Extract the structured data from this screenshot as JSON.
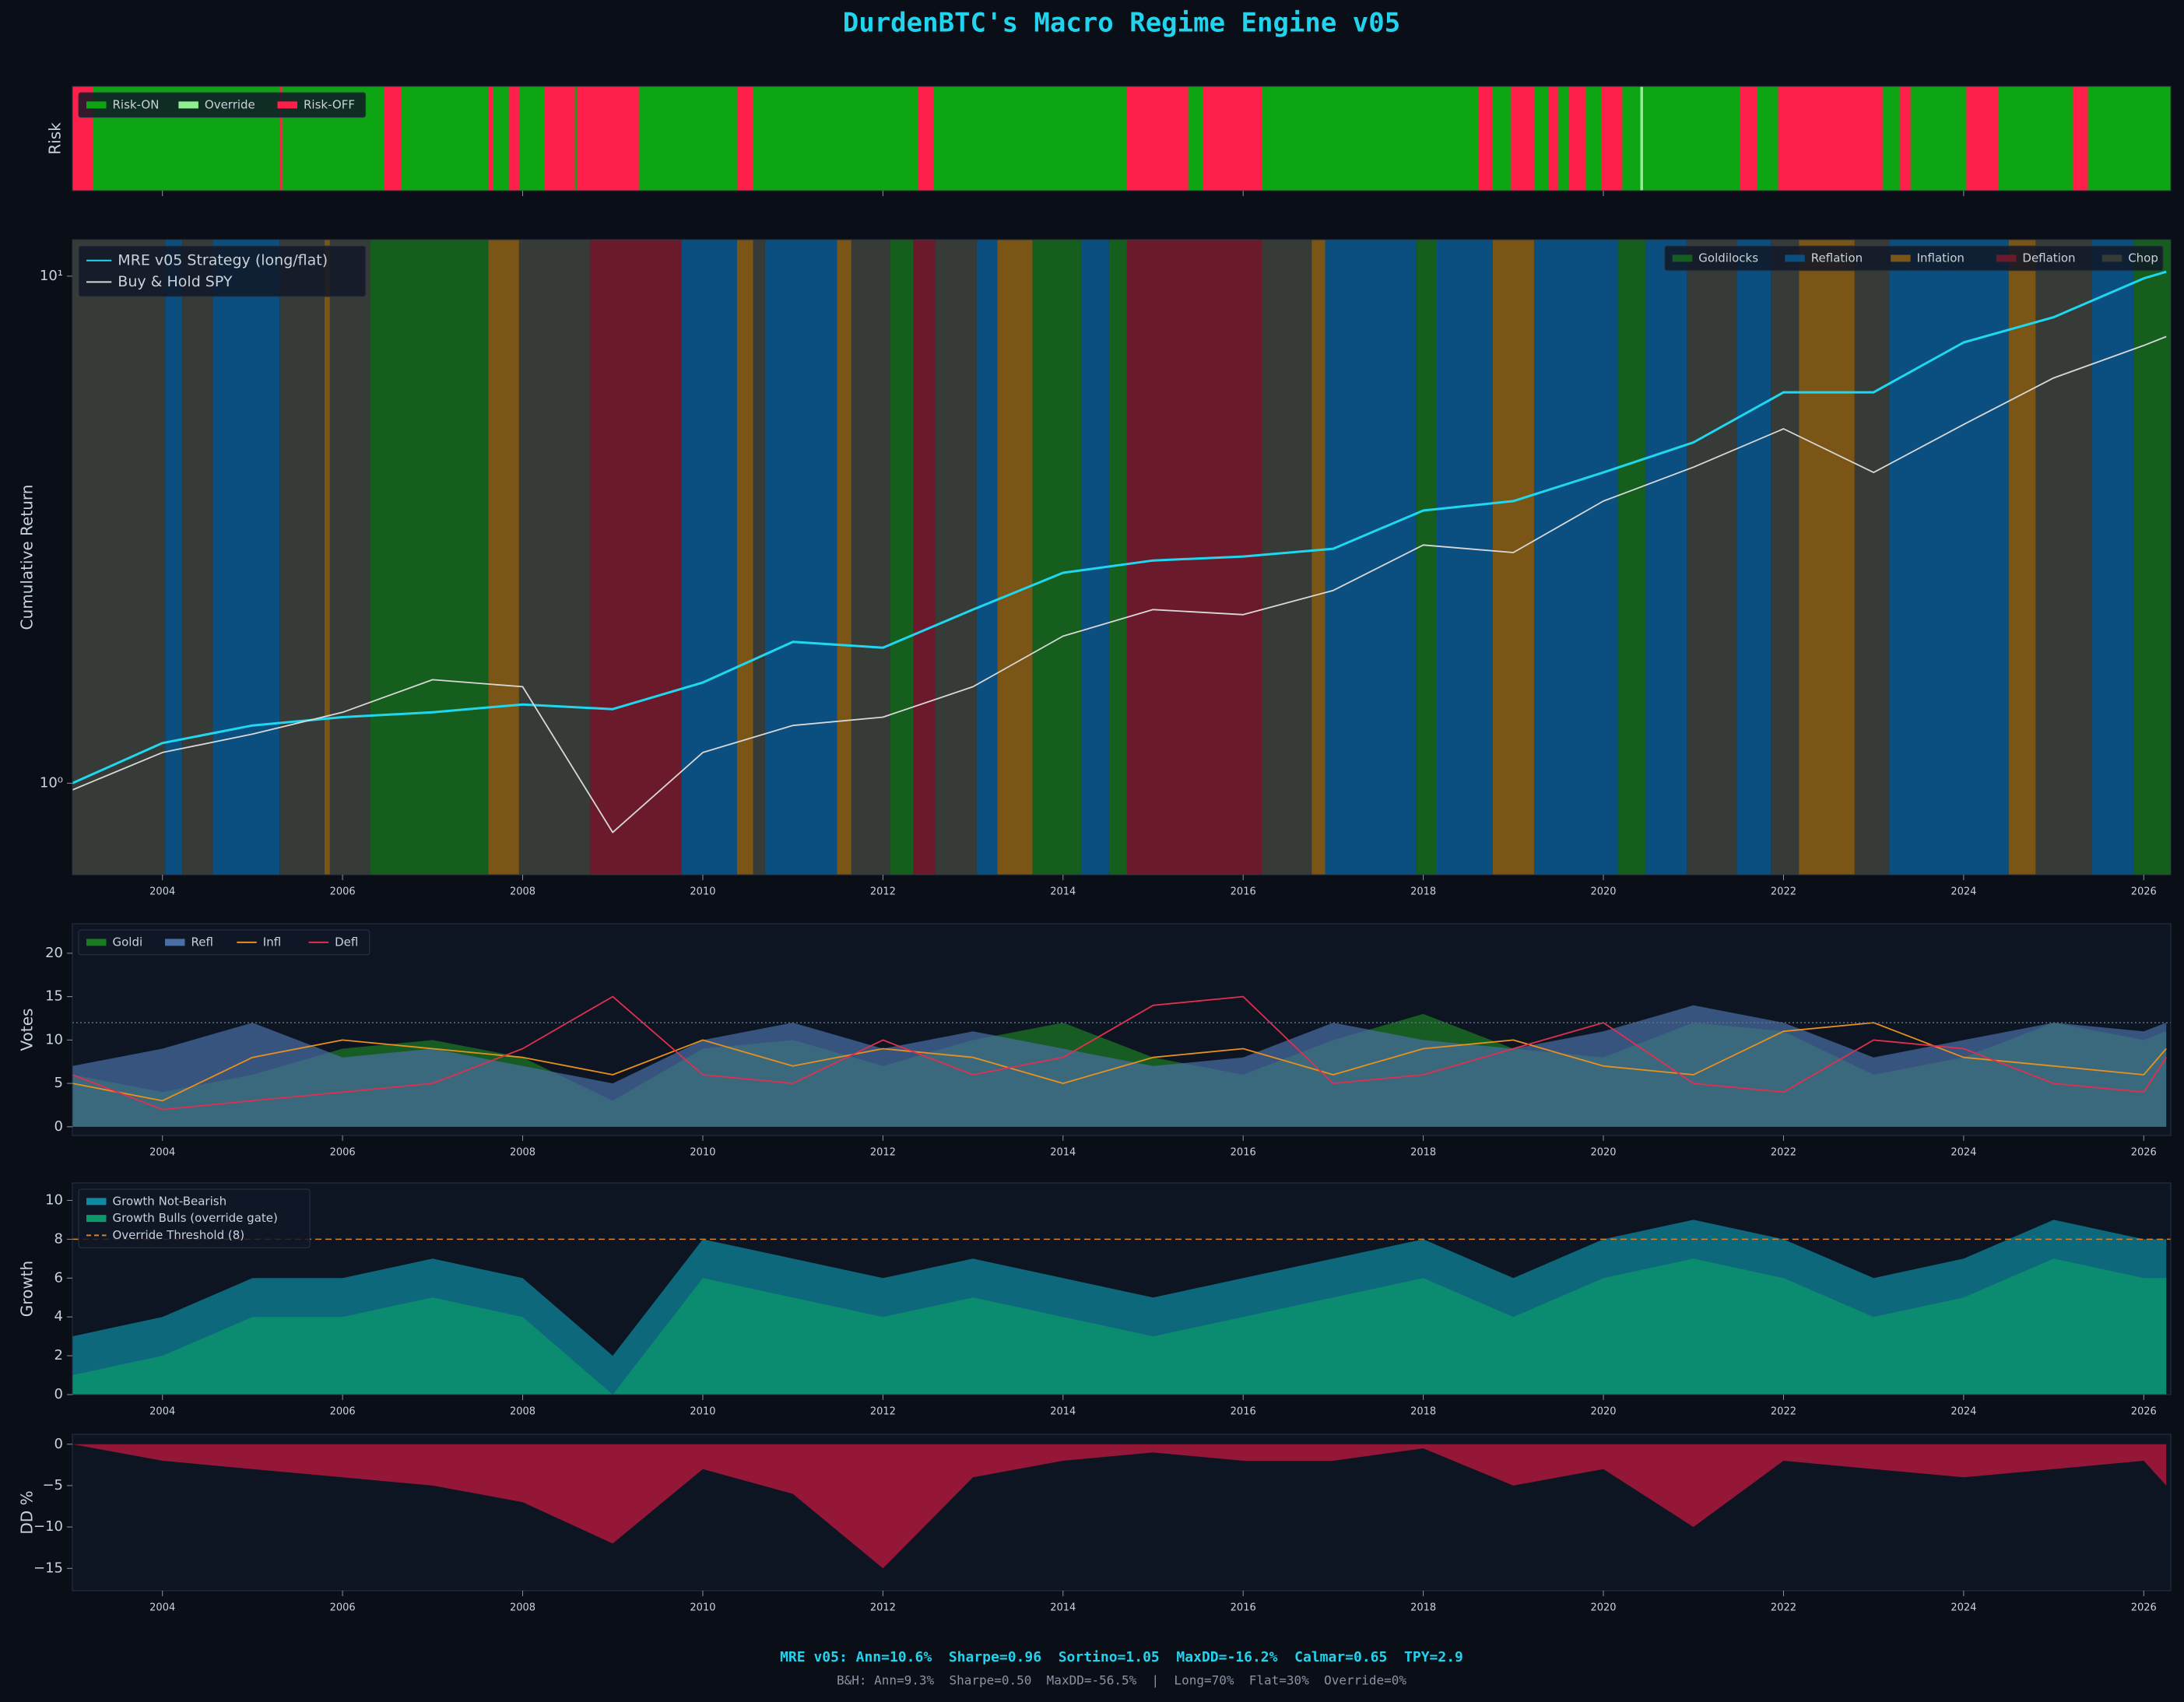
{
  "title": "DurdenBTC's Macro Regime Engine v05",
  "footer": [
    "MRE v05: Ann=10.6%  Sharpe=0.96  Sortino=1.05  MaxDD=-16.2%  Calmar=0.65  TPY=2.9",
    "B&H: Ann=9.3%  Sharpe=0.50  MaxDD=-56.5%  |  Long=70%  Flat=30%  Override=0%"
  ],
  "chart_data": [
    {
      "type": "band",
      "ylabel": "Risk",
      "xlim": [
        2003,
        2026.3
      ],
      "xticks": [
        2004,
        2008,
        2012,
        2016,
        2020,
        2024
      ],
      "xtick_labels": false,
      "legend": "upper left",
      "legend_ncol": 3,
      "series": [
        {
          "name": "Risk-ON",
          "color": "#0ea515"
        },
        {
          "name": "Override",
          "color": "#90ee90",
          "intervals": [
            [
              2020.41,
              2020.44
            ]
          ]
        },
        {
          "name": "Risk-OFF",
          "color": "#ff1f4b",
          "intervals": [
            [
              2003,
              2003.23
            ],
            [
              2005.3,
              2005.33
            ],
            [
              2006.46,
              2006.65
            ],
            [
              2007.62,
              2007.67
            ],
            [
              2007.85,
              2007.96
            ],
            [
              2008.24,
              2008.58
            ],
            [
              2008.6,
              2009.29
            ],
            [
              2010.38,
              2010.56
            ],
            [
              2012.39,
              2012.56
            ],
            [
              2014.71,
              2015.39
            ],
            [
              2015.55,
              2016.21
            ],
            [
              2018.61,
              2018.77
            ],
            [
              2018.97,
              2019.23
            ],
            [
              2019.39,
              2019.5
            ],
            [
              2019.62,
              2019.8
            ],
            [
              2019.98,
              2020.21
            ],
            [
              2021.52,
              2021.71
            ],
            [
              2021.94,
              2023.1
            ],
            [
              2023.29,
              2023.41
            ],
            [
              2024.03,
              2024.39
            ],
            [
              2025.21,
              2025.38
            ]
          ]
        }
      ]
    },
    {
      "type": "line",
      "ylabel": "Cumulative Return",
      "yscale": "log",
      "xlim": [
        2003,
        2026.3
      ],
      "ylim": [
        0.66,
        11.8
      ],
      "xticks": [
        2004,
        2006,
        2008,
        2010,
        2012,
        2014,
        2016,
        2018,
        2020,
        2022,
        2024,
        2026
      ],
      "yticks": [
        {
          "value": 1,
          "label": "10⁰"
        },
        {
          "value": 10,
          "label": "10¹"
        }
      ],
      "legend": "upper left",
      "legend_ncol": 1,
      "x": [
        2003,
        2004,
        2005,
        2006,
        2007,
        2008,
        2009,
        2010,
        2011,
        2012,
        2013,
        2014,
        2015,
        2016,
        2017,
        2018,
        2019,
        2020,
        2021,
        2022,
        2023,
        2024,
        2025,
        2026,
        2026.25
      ],
      "series": [
        {
          "name": "MRE v05 Strategy (long/flat)",
          "color": "#1fd8f0",
          "values": [
            1.0,
            1.2,
            1.3,
            1.35,
            1.38,
            1.43,
            1.4,
            1.58,
            1.9,
            1.85,
            2.2,
            2.6,
            2.75,
            2.8,
            2.9,
            3.45,
            3.6,
            4.1,
            4.7,
            5.9,
            5.9,
            7.4,
            8.3,
            9.9,
            10.2
          ]
        },
        {
          "name": "Buy & Hold SPY",
          "color": "#d8d8d8",
          "values": [
            0.97,
            1.15,
            1.25,
            1.38,
            1.6,
            1.55,
            0.8,
            1.15,
            1.3,
            1.35,
            1.55,
            1.95,
            2.2,
            2.15,
            2.4,
            2.95,
            2.85,
            3.6,
            4.2,
            5.0,
            4.1,
            5.1,
            6.3,
            7.3,
            7.6
          ]
        }
      ],
      "regime_legend": "upper right",
      "regimes": [
        {
          "name": "Goldilocks",
          "color": "#155e1e",
          "intervals": [
            [
              2006.31,
              2007.62
            ],
            [
              2012.08,
              2012.34
            ],
            [
              2013.66,
              2014.2
            ],
            [
              2014.51,
              2014.71
            ],
            [
              2017.92,
              2018.15
            ],
            [
              2020.16,
              2020.47
            ],
            [
              2025.89,
              2026.3
            ]
          ]
        },
        {
          "name": "Reflation",
          "color": "#0a4f80",
          "intervals": [
            [
              2004.03,
              2004.22
            ],
            [
              2004.56,
              2005.3
            ],
            [
              2009.76,
              2010.38
            ],
            [
              2010.69,
              2011.49
            ],
            [
              2013.04,
              2013.27
            ],
            [
              2014.2,
              2014.51
            ],
            [
              2016.91,
              2017.92
            ],
            [
              2018.15,
              2018.77
            ],
            [
              2019.23,
              2020.16
            ],
            [
              2020.47,
              2020.93
            ],
            [
              2021.48,
              2021.86
            ],
            [
              2023.18,
              2024.5
            ],
            [
              2025.42,
              2025.89
            ]
          ]
        },
        {
          "name": "Inflation",
          "color": "#7a5516",
          "intervals": [
            [
              2005.8,
              2005.86
            ],
            [
              2007.62,
              2007.96
            ],
            [
              2010.38,
              2010.56
            ],
            [
              2011.49,
              2011.65
            ],
            [
              2013.27,
              2013.66
            ],
            [
              2016.76,
              2016.91
            ],
            [
              2018.77,
              2019.23
            ],
            [
              2022.17,
              2022.79
            ],
            [
              2024.5,
              2024.8
            ]
          ]
        },
        {
          "name": "Deflation",
          "color": "#6b1a2b",
          "intervals": [
            [
              2008.75,
              2009.76
            ],
            [
              2012.34,
              2012.58
            ],
            [
              2014.71,
              2016.21
            ]
          ]
        },
        {
          "name": "Chop",
          "color": "#363b37",
          "intervals": [
            [
              2003,
              2004.03
            ],
            [
              2004.22,
              2004.56
            ],
            [
              2005.3,
              2005.8
            ],
            [
              2005.86,
              2006.31
            ],
            [
              2007.96,
              2008.75
            ],
            [
              2010.56,
              2010.69
            ],
            [
              2011.65,
              2012.08
            ],
            [
              2012.58,
              2013.04
            ],
            [
              2016.21,
              2016.76
            ],
            [
              2020.93,
              2021.48
            ],
            [
              2021.86,
              2022.17
            ],
            [
              2022.79,
              2023.18
            ],
            [
              2024.8,
              2025.42
            ]
          ]
        }
      ]
    },
    {
      "type": "area",
      "ylabel": "Votes",
      "xlim": [
        2003,
        2026.3
      ],
      "ylim": [
        -1,
        23.4
      ],
      "xticks": [
        2004,
        2006,
        2008,
        2010,
        2012,
        2014,
        2016,
        2018,
        2020,
        2022,
        2024,
        2026
      ],
      "yticks": [
        0,
        5,
        10,
        15,
        20
      ],
      "legend": "upper left",
      "legend_ncol": 4,
      "x": [
        2003,
        2004,
        2005,
        2006,
        2007,
        2008,
        2009,
        2010,
        2011,
        2012,
        2013,
        2014,
        2015,
        2016,
        2017,
        2018,
        2019,
        2020,
        2021,
        2022,
        2023,
        2024,
        2025,
        2026,
        2026.25
      ],
      "hlines": [
        {
          "value": 12,
          "color": "#5d7283"
        }
      ],
      "series": [
        {
          "name": "Goldi",
          "style": "area",
          "color": "#1d7a24",
          "values": [
            6,
            4,
            6,
            9,
            10,
            8,
            3,
            9,
            10,
            7,
            10,
            12,
            8,
            6,
            10,
            13,
            9,
            8,
            12,
            11,
            6,
            8,
            12,
            10,
            11
          ]
        },
        {
          "name": "Refl",
          "style": "area",
          "color": "#4a6fa5",
          "values": [
            7,
            9,
            12,
            8,
            9,
            7,
            5,
            10,
            12,
            9,
            11,
            9,
            7,
            8,
            12,
            10,
            9,
            11,
            14,
            12,
            8,
            10,
            12,
            11,
            12
          ]
        },
        {
          "name": "Infl",
          "style": "line",
          "color": "#e8901e",
          "values": [
            5,
            3,
            8,
            10,
            9,
            8,
            6,
            10,
            7,
            9,
            8,
            5,
            8,
            9,
            6,
            9,
            10,
            7,
            6,
            11,
            12,
            8,
            7,
            6,
            9
          ]
        },
        {
          "name": "Defl",
          "style": "line",
          "color": "#e0304f",
          "values": [
            6,
            2,
            3,
            4,
            5,
            9,
            15,
            6,
            5,
            10,
            6,
            8,
            14,
            15,
            5,
            6,
            9,
            12,
            5,
            4,
            10,
            9,
            5,
            4,
            8
          ]
        }
      ]
    },
    {
      "type": "area",
      "ylabel": "Growth",
      "xlim": [
        2003,
        2026.3
      ],
      "ylim": [
        0,
        10.9
      ],
      "xticks": [
        2004,
        2006,
        2008,
        2010,
        2012,
        2014,
        2016,
        2018,
        2020,
        2022,
        2024,
        2026
      ],
      "yticks": [
        0,
        2,
        4,
        6,
        8,
        10
      ],
      "legend": "upper left",
      "legend_ncol": 1,
      "x": [
        2003,
        2004,
        2005,
        2006,
        2007,
        2008,
        2009,
        2010,
        2011,
        2012,
        2013,
        2014,
        2015,
        2016,
        2017,
        2018,
        2019,
        2020,
        2021,
        2022,
        2023,
        2024,
        2025,
        2026,
        2026.25
      ],
      "series": [
        {
          "name": "Growth Not-Bearish",
          "style": "area",
          "color": "#0e8ba3",
          "values": [
            3,
            4,
            6,
            6,
            7,
            6,
            2,
            8,
            7,
            6,
            7,
            6,
            5,
            6,
            7,
            8,
            6,
            8,
            9,
            8,
            6,
            7,
            9,
            8,
            8
          ]
        },
        {
          "name": "Growth Bulls (override gate)",
          "style": "area",
          "color": "#0c9a6a",
          "values": [
            1,
            2,
            4,
            4,
            5,
            4,
            0,
            6,
            5,
            4,
            5,
            4,
            3,
            4,
            5,
            6,
            4,
            6,
            7,
            6,
            4,
            5,
            7,
            6,
            6
          ]
        }
      ],
      "hlines": [
        {
          "name": "Override Threshold (8)",
          "value": 8,
          "color": "#d9822b"
        }
      ]
    },
    {
      "type": "area",
      "ylabel": "DD %",
      "xlim": [
        2003,
        2026.3
      ],
      "ylim": [
        -17.7,
        1.2
      ],
      "xticks": [
        2004,
        2006,
        2008,
        2010,
        2012,
        2014,
        2016,
        2018,
        2020,
        2022,
        2024,
        2026
      ],
      "yticks": [
        {
          "value": -15,
          "label": "−15"
        },
        {
          "value": -10,
          "label": "−10"
        },
        {
          "value": -5,
          "label": "−5"
        },
        0
      ],
      "x": [
        2003,
        2004,
        2005,
        2006,
        2007,
        2008,
        2009,
        2010,
        2011,
        2012,
        2013,
        2014,
        2015,
        2016,
        2017,
        2018,
        2019,
        2020,
        2021,
        2022,
        2023,
        2024,
        2025,
        2026,
        2026.25
      ],
      "series": [
        {
          "style": "area",
          "color": "#a3173a",
          "values": [
            0,
            -2,
            -3,
            -4,
            -5,
            -7,
            -12,
            -3,
            -6,
            -15,
            -4,
            -2,
            -1,
            -2,
            -2,
            -0.5,
            -5,
            -3,
            -10,
            -2,
            -3,
            -4,
            -3,
            -2,
            -5
          ]
        }
      ]
    }
  ]
}
